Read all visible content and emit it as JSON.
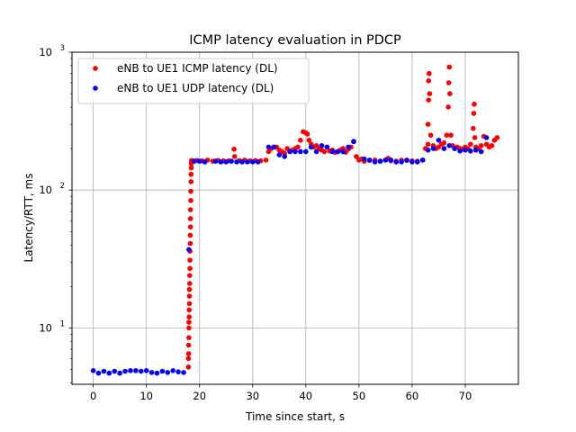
{
  "chart_data": {
    "type": "scatter",
    "title": "ICMP latency evaluation in PDCP",
    "xlabel": "Time since start, s",
    "ylabel": "Latency/RTT, ms",
    "xlim": [
      -4,
      80
    ],
    "ylim": [
      3.9,
      1000
    ],
    "yscale": "log",
    "grid": true,
    "legend": "top-left",
    "x_ticks": [
      0,
      10,
      20,
      30,
      40,
      50,
      60,
      70
    ],
    "x_tick_labels": [
      "0",
      "10",
      "20",
      "30",
      "40",
      "50",
      "60",
      "70"
    ],
    "y_ticks": [
      10,
      100,
      1000
    ],
    "y_tick_labels": [
      "10^1",
      "10^2",
      "10^3"
    ],
    "series": [
      {
        "name": "eNB to UE1 ICMP latency (DL)",
        "color": "#ff0000",
        "x": [
          17.9,
          17.9,
          17.95,
          17.95,
          18.0,
          18.0,
          18.0,
          18.05,
          18.05,
          18.1,
          18.1,
          18.1,
          18.15,
          18.15,
          18.2,
          18.2,
          18.2,
          18.25,
          18.25,
          18.3,
          18.3,
          18.3,
          18.35,
          18.35,
          18.4,
          18.4,
          18.45,
          18.45,
          18.5,
          18.5,
          18.6,
          19.5,
          20.5,
          21.5,
          22.5,
          23.5,
          24.5,
          25.5,
          26.5,
          26.6,
          27.5,
          28.5,
          29.5,
          30.5,
          31.5,
          32.5,
          33.0,
          33.5,
          34.0,
          34.5,
          35.0,
          35.5,
          36.0,
          36.5,
          37.0,
          37.5,
          38.0,
          38.5,
          39.0,
          39.5,
          40.0,
          40.3,
          40.6,
          41.0,
          41.5,
          42.0,
          42.5,
          43.0,
          43.5,
          44.0,
          44.5,
          45.0,
          45.5,
          46.0,
          46.5,
          47.0,
          47.5,
          48.0,
          48.5,
          49.0,
          49.5,
          50.0,
          50.5,
          51.0,
          52.0,
          53.0,
          54.0,
          55.0,
          55.5,
          56.0,
          57.0,
          58.0,
          59.0,
          60.0,
          61.0,
          62.0,
          62.5,
          63.0,
          63.0,
          63.1,
          63.1,
          63.2,
          63.3,
          63.5,
          64.0,
          64.5,
          65.0,
          65.5,
          66.0,
          66.5,
          66.8,
          66.9,
          67.0,
          67.1,
          67.3,
          67.6,
          68.0,
          68.5,
          69.0,
          69.5,
          70.0,
          70.5,
          71.0,
          71.5,
          71.6,
          71.7,
          71.8,
          72.0,
          72.5,
          73.0,
          73.5,
          74.0,
          74.5,
          75.0,
          75.5,
          76.0
        ],
        "y": [
          5.2,
          6,
          6.5,
          7.5,
          8.5,
          10,
          11,
          12,
          13.5,
          15,
          17,
          19,
          21,
          24,
          27,
          31,
          36,
          41,
          47,
          54,
          62,
          72,
          84,
          98,
          115,
          130,
          145,
          155,
          160,
          164,
          162,
          164,
          163,
          165,
          162,
          164,
          163,
          163,
          198,
          175,
          164,
          165,
          163,
          164,
          163,
          165,
          190,
          200,
          205,
          205,
          195,
          190,
          185,
          200,
          192,
          195,
          200,
          205,
          230,
          265,
          260,
          255,
          230,
          215,
          205,
          210,
          200,
          195,
          190,
          205,
          192,
          195,
          188,
          190,
          195,
          200,
          188,
          198,
          205,
          225,
          175,
          165,
          168,
          162,
          164,
          165,
          162,
          165,
          170,
          163,
          162,
          165,
          164,
          163,
          162,
          165,
          200,
          215,
          300,
          450,
          620,
          700,
          500,
          250,
          210,
          200,
          205,
          215,
          220,
          250,
          400,
          600,
          780,
          500,
          250,
          210,
          200,
          205,
          200,
          198,
          205,
          200,
          215,
          280,
          360,
          420,
          240,
          205,
          200,
          210,
          245,
          215,
          205,
          210,
          230,
          240
        ]
      },
      {
        "name": "eNB to UE1 UDP latency (DL)",
        "color": "#0000ff",
        "x": [
          0,
          1,
          2,
          3,
          4,
          5,
          6,
          7,
          8,
          9,
          10,
          11,
          12,
          13,
          14,
          15,
          16,
          17,
          18,
          19,
          20,
          21,
          23,
          24,
          25,
          26,
          27,
          28,
          29,
          30,
          31,
          33,
          34,
          35,
          36,
          37,
          38,
          39,
          40,
          41,
          42,
          43,
          44,
          45,
          46,
          47,
          48,
          49,
          51,
          52,
          53,
          54,
          55,
          56,
          57,
          58,
          59,
          60,
          61,
          62,
          63,
          64,
          65,
          66,
          67,
          68,
          69,
          70,
          71,
          72,
          73,
          74
        ],
        "y": [
          4.9,
          4.7,
          4.85,
          4.7,
          4.85,
          4.7,
          4.85,
          4.9,
          4.9,
          4.85,
          4.9,
          4.75,
          4.7,
          4.85,
          4.75,
          4.9,
          4.8,
          4.75,
          37,
          162,
          162,
          160,
          162,
          160,
          160,
          162,
          160,
          160,
          160,
          160,
          160,
          205,
          205,
          180,
          175,
          190,
          190,
          190,
          190,
          205,
          190,
          210,
          205,
          190,
          190,
          190,
          205,
          225,
          168,
          165,
          160,
          162,
          165,
          165,
          160,
          160,
          165,
          160,
          160,
          165,
          195,
          200,
          230,
          200,
          210,
          200,
          192,
          195,
          192,
          195,
          190,
          240
        ]
      }
    ]
  }
}
